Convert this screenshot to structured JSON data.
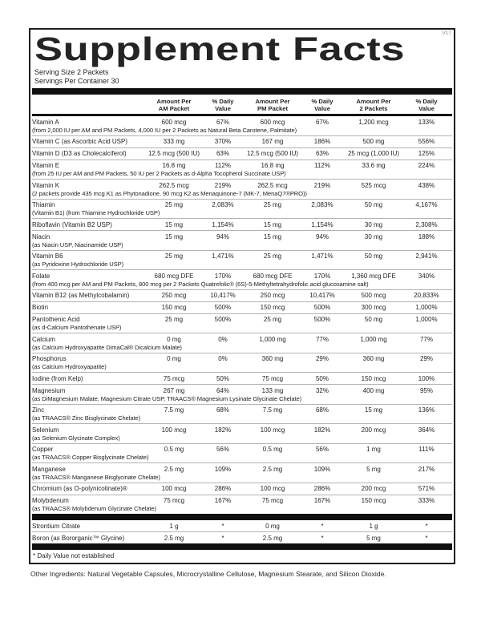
{
  "version_tag": "V17",
  "title": "Supplement Facts",
  "serving_size": "Serving Size 2 Packets",
  "servings_per_container": "Servings Per Container 30",
  "columns": [
    {
      "l1": "Amount Per",
      "l2": "AM Packet"
    },
    {
      "l1": "% Daily",
      "l2": "Value"
    },
    {
      "l1": "Amount Per",
      "l2": "PM Packet"
    },
    {
      "l1": "% Daily",
      "l2": "Value"
    },
    {
      "l1": "Amount Per",
      "l2": "2 Packets"
    },
    {
      "l1": "% Daily",
      "l2": "Value"
    }
  ],
  "rows": [
    {
      "name": "Vitamin A",
      "sub": "(from 2,000 IU per AM and PM Packets, 4,000 IU per 2 Packets as Natural Beta Carotene, Palmitate)",
      "am": "600 mcg",
      "am_dv": "67%",
      "pm": "600 mcg",
      "pm_dv": "67%",
      "total": "1,200 mcg",
      "total_dv": "133%"
    },
    {
      "name": "Vitamin C (as Ascorbic Acid USP)",
      "am": "333 mg",
      "am_dv": "370%",
      "pm": "167 mg",
      "pm_dv": "186%",
      "total": "500 mg",
      "total_dv": "556%"
    },
    {
      "name": "Vitamin D (D3 as Cholecalciferol)",
      "am": "12.5 mcg (500 IU)",
      "am_dv": "63%",
      "pm": "12.5 mcg (500 IU)",
      "pm_dv": "63%",
      "total": "25 mcg (1,000 IU)",
      "total_dv": "125%"
    },
    {
      "name": "Vitamin E",
      "sub": "(from 25 IU per AM and PM Packets, 50 IU per 2 Packets as d-Alpha Tocopherol Succinate USP)",
      "am": "16.8 mg",
      "am_dv": "112%",
      "pm": "16.8 mg",
      "pm_dv": "112%",
      "total": "33.6 mg",
      "total_dv": "224%"
    },
    {
      "name": "Vitamin K",
      "sub": "(2 packets provide 435 mcg K1 as Phytonadione, 90 mcg K2 as Menaquinone-7 (MK-7, MenaQ7®PRO))",
      "am": "262.5 mcg",
      "am_dv": "219%",
      "pm": "262.5 mcg",
      "pm_dv": "219%",
      "total": "525 mcg",
      "total_dv": "438%"
    },
    {
      "name": "Thiamin",
      "sub": "(Vitamin B1) (from Thiamine Hydrochloride USP)",
      "am": "25 mg",
      "am_dv": "2,083%",
      "pm": "25 mg",
      "pm_dv": "2,083%",
      "total": "50 mg",
      "total_dv": "4,167%"
    },
    {
      "name": "Riboflavin (Vitamin B2 USP)",
      "am": "15 mg",
      "am_dv": "1,154%",
      "pm": "15 mg",
      "pm_dv": "1,154%",
      "total": "30 mg",
      "total_dv": "2,308%"
    },
    {
      "name": "Niacin",
      "sub": "(as Niacin USP, Niacinamide USP)",
      "am": "15 mg",
      "am_dv": "94%",
      "pm": "15 mg",
      "pm_dv": "94%",
      "total": "30 mg",
      "total_dv": "188%"
    },
    {
      "name": "Vitamin B6",
      "sub": "(as Pyridoxine Hydrochloride USP)",
      "am": "25 mg",
      "am_dv": "1,471%",
      "pm": "25 mg",
      "pm_dv": "1,471%",
      "total": "50 mg",
      "total_dv": "2,941%"
    },
    {
      "name": "Folate",
      "sub": "(from 400 mcg per AM and PM Packets, 800 mcg per 2 Packets Quatrefolic® (6S)-5-Methyltetrahydrofolic acid glucosamine salt)",
      "am": "680 mcg DFE",
      "am_dv": "170%",
      "pm": "680 mcg DFE",
      "pm_dv": "170%",
      "total": "1,360 mcg DFE",
      "total_dv": "340%"
    },
    {
      "name": "Vitamin B12 (as Methylcobalamin)",
      "am": "250 mcg",
      "am_dv": "10,417%",
      "pm": "250 mcg",
      "pm_dv": "10,417%",
      "total": "500 mcg",
      "total_dv": "20,833%"
    },
    {
      "name": "Biotin",
      "am": "150 mcg",
      "am_dv": "500%",
      "pm": "150 mcg",
      "pm_dv": "500%",
      "total": "300 mcg",
      "total_dv": "1,000%"
    },
    {
      "name": "Pantothenic Acid",
      "sub": "(as d-Calcium Pantothenate USP)",
      "am": "25 mg",
      "am_dv": "500%",
      "pm": "25 mg",
      "pm_dv": "500%",
      "total": "50 mg",
      "total_dv": "1,000%"
    },
    {
      "name": "Calcium",
      "sub": "(as Calcium Hydroxyapatite DimaCal® Dicalcium Malate)",
      "am": "0 mg",
      "am_dv": "0%",
      "pm": "1,000 mg",
      "pm_dv": "77%",
      "total": "1,000 mg",
      "total_dv": "77%"
    },
    {
      "name": "Phosphorus",
      "sub": "(as Calcium Hydroxyapatite)",
      "am": "0 mg",
      "am_dv": "0%",
      "pm": "360 mg",
      "pm_dv": "29%",
      "total": "360 mg",
      "total_dv": "29%"
    },
    {
      "name": "Iodine (from Kelp)",
      "am": "75 mcg",
      "am_dv": "50%",
      "pm": "75 mcg",
      "pm_dv": "50%",
      "total": "150 mcg",
      "total_dv": "100%"
    },
    {
      "name": "Magnesium",
      "sub": "(as DiMagnesium Malate, Magnesium Citrate USP, TRAACS® Magnesium Lysinate Glycinate Chelate)",
      "am": "267 mg",
      "am_dv": "64%",
      "pm": "133 mg",
      "pm_dv": "32%",
      "total": "400 mg",
      "total_dv": "95%"
    },
    {
      "name": "Zinc",
      "sub": "(as TRAACS® Zinc Bisglycinate Chelate)",
      "am": "7.5 mg",
      "am_dv": "68%",
      "pm": "7.5 mg",
      "pm_dv": "68%",
      "total": "15 mg",
      "total_dv": "136%"
    },
    {
      "name": "Selenium",
      "sub": "(as Selenium Glycinate Complex)",
      "am": "100 mcg",
      "am_dv": "182%",
      "pm": "100 mcg",
      "pm_dv": "182%",
      "total": "200 mcg",
      "total_dv": "364%"
    },
    {
      "name": "Copper",
      "sub": "(as TRAACS® Copper Bisglycinate Chelate)",
      "am": "0.5 mg",
      "am_dv": "56%",
      "pm": "0.5 mg",
      "pm_dv": "56%",
      "total": "1 mg",
      "total_dv": "111%"
    },
    {
      "name": "Manganese",
      "sub": "(as TRAACS® Manganese Bisglycinate Chelate)",
      "am": "2.5 mg",
      "am_dv": "109%",
      "pm": "2.5 mg",
      "pm_dv": "109%",
      "total": "5 mg",
      "total_dv": "217%"
    },
    {
      "name": "Chromium (as O-polynicotinate)®",
      "am": "100 mcg",
      "am_dv": "286%",
      "pm": "100 mcg",
      "pm_dv": "286%",
      "total": "200 mcg",
      "total_dv": "571%"
    },
    {
      "name": "Molybdenum",
      "sub": "(as TRAACS® Molybdenum Glycinate Chelate)",
      "am": "75 mcg",
      "am_dv": "167%",
      "pm": "75 mcg",
      "pm_dv": "167%",
      "total": "150 mcg",
      "total_dv": "333%"
    }
  ],
  "no_dv_rows": [
    {
      "name": "Strontium Citrate",
      "am": "1 g",
      "am_dv": "*",
      "pm": "0 mg",
      "pm_dv": "*",
      "total": "1 g",
      "total_dv": "*"
    },
    {
      "name": "Boron (as Bororganic™ Glycine)",
      "am": "2.5 mg",
      "am_dv": "*",
      "pm": "2.5 mg",
      "pm_dv": "*",
      "total": "5 mg",
      "total_dv": "*"
    }
  ],
  "footnote": "* Daily Value not established",
  "other_ingredients": "Other Ingredients: Natural Vegetable Capsules, Microcrystalline Cellulose, Magnesium Stearate, and Silicon Dioxide.",
  "colors": {
    "bar": "#101010",
    "border": "#1f1f1f",
    "separator": "#b3b3b3"
  }
}
